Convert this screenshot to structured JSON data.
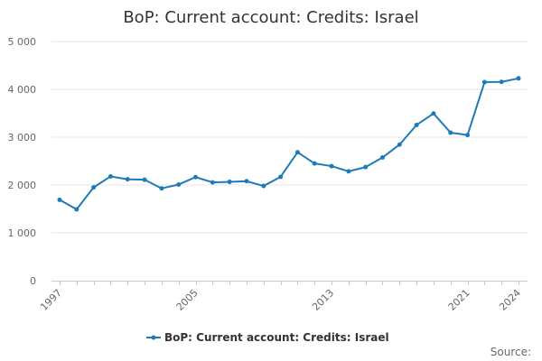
{
  "chart_data": {
    "type": "line",
    "title": "BoP: Current account: Credits: Israel",
    "xlabel": "",
    "ylabel": "",
    "x": [
      1997,
      1998,
      1999,
      2000,
      2001,
      2002,
      2003,
      2004,
      2005,
      2006,
      2007,
      2008,
      2009,
      2010,
      2011,
      2012,
      2013,
      2014,
      2015,
      2016,
      2017,
      2018,
      2019,
      2020,
      2021,
      2022,
      2023,
      2024
    ],
    "series": [
      {
        "name": "BoP: Current account: Credits: Israel",
        "color": "#1f7bb6",
        "values": [
          1690,
          1490,
          1950,
          2180,
          2120,
          2110,
          1930,
          2010,
          2165,
          2055,
          2065,
          2080,
          1980,
          2170,
          2685,
          2450,
          2395,
          2285,
          2375,
          2575,
          2845,
          3255,
          3495,
          3095,
          3045,
          4150,
          4155,
          4230
        ]
      }
    ],
    "x_tick_labels": [
      "1997",
      "2005",
      "2013",
      "2021",
      "2024"
    ],
    "y_tick_labels": [
      "0",
      "1 000",
      "2 000",
      "3 000",
      "4 000",
      "5 000"
    ],
    "ylim": [
      0,
      5000
    ],
    "xlim": [
      1997,
      2024
    ],
    "grid": true,
    "legend_position": "bottom-center"
  },
  "source_label": "Source:"
}
